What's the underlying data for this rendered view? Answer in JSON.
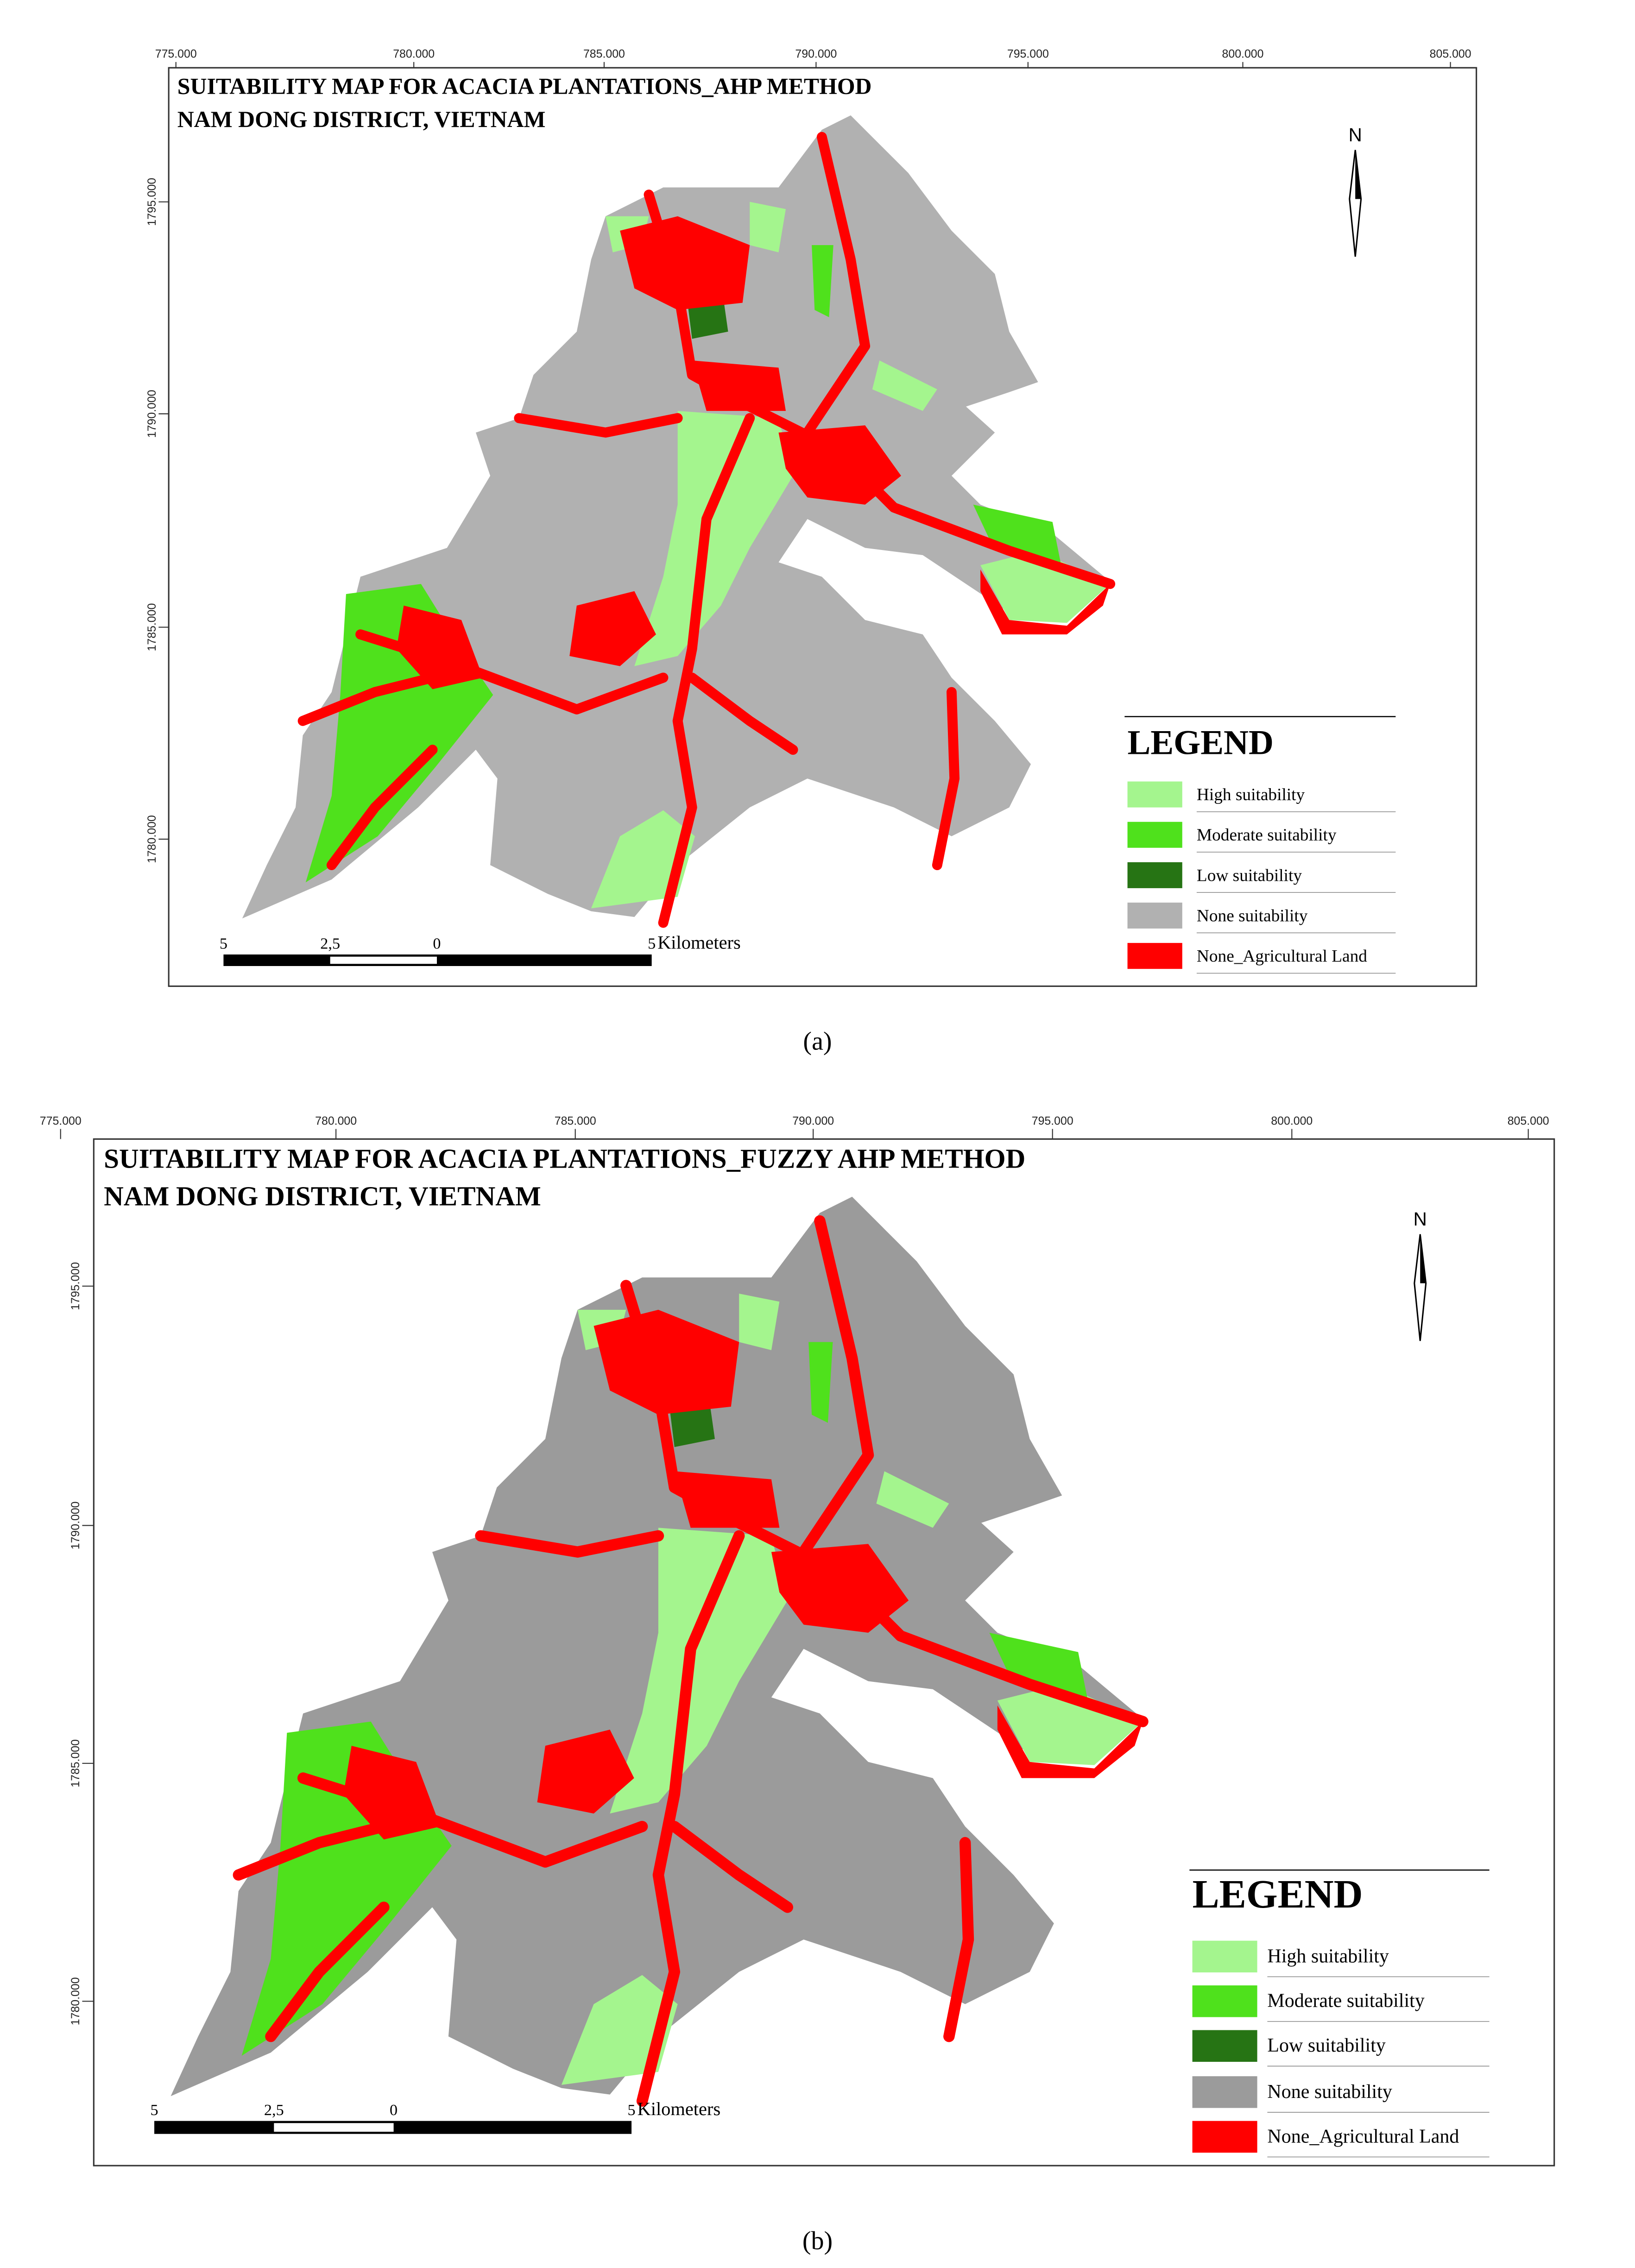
{
  "maps": [
    {
      "title_lines": [
        "SUITABILITY MAP FOR ACACIA PLANTATIONS_AHP METHOD",
        "NAM DONG DISTRICT, VIETNAM"
      ],
      "x_labels": [
        "775.000",
        "780.000",
        "785.000",
        "790.000",
        "795.000",
        "800.000",
        "805.000"
      ],
      "y_labels": [
        "1795.000",
        "1790.000",
        "1785.000",
        "1780.000"
      ],
      "north": "N",
      "legend": {
        "title": "LEGEND",
        "items": [
          {
            "label": "High suitability",
            "color": "#a4f58e"
          },
          {
            "label": "Moderate suitability",
            "color": "#4fe11c"
          },
          {
            "label": "Low suitability",
            "color": "#267414"
          },
          {
            "label": "None suitability",
            "color": "#b1b1b1"
          },
          {
            "label": "None_Agricultural Land",
            "color": "#ff0000"
          }
        ]
      },
      "scale": {
        "labels": [
          "5",
          "2,5",
          "0",
          "5"
        ],
        "unit": "Kilometers"
      },
      "caption": "(a)"
    },
    {
      "title_lines": [
        "SUITABILITY MAP FOR ACACIA PLANTATIONS_FUZZY AHP METHOD",
        "NAM DONG DISTRICT, VIETNAM"
      ],
      "x_labels": [
        "775.000",
        "780.000",
        "785.000",
        "790.000",
        "795.000",
        "800.000",
        "805.000"
      ],
      "y_labels": [
        "1795.000",
        "1790.000",
        "1785.000",
        "1780.000"
      ],
      "north": "N",
      "legend": {
        "title": "LEGEND",
        "items": [
          {
            "label": "High suitability",
            "color": "#a4f58e"
          },
          {
            "label": "Moderate suitability",
            "color": "#4fe11c"
          },
          {
            "label": "Low suitability",
            "color": "#267414"
          },
          {
            "label": "None suitability",
            "color": "#9b9b9b"
          },
          {
            "label": "None_Agricultural Land",
            "color": "#ff0000"
          }
        ]
      },
      "scale": {
        "labels": [
          "5",
          "2,5",
          "0",
          "5"
        ],
        "unit": "Kilometers"
      },
      "caption": "(b)"
    }
  ]
}
